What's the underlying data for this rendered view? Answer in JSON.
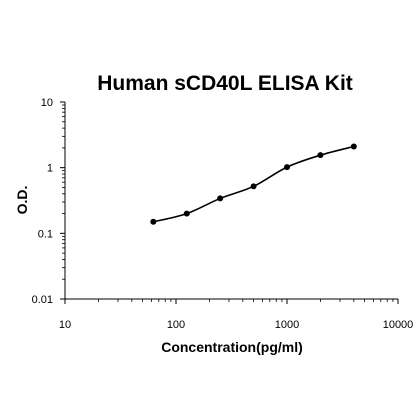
{
  "chart_data": {
    "type": "line",
    "title": "Human sCD40L  ELISA Kit",
    "xlabel": "Concentration(pg/ml)",
    "ylabel": "O.D.",
    "x_scale": "log",
    "y_scale": "log",
    "xlim": [
      10,
      10000
    ],
    "ylim": [
      0.01,
      10
    ],
    "x_ticks": [
      "10",
      "100",
      "1000",
      "10000"
    ],
    "y_ticks": [
      "10",
      "1",
      "0.1",
      "0.01"
    ],
    "grid": false,
    "legend": "none",
    "series": [
      {
        "x": [
          62.5,
          125,
          250,
          500,
          1000,
          2000,
          4000
        ],
        "y": [
          0.15,
          0.2,
          0.34,
          0.52,
          1.02,
          1.55,
          2.1
        ]
      }
    ],
    "colors": {
      "line": "#000000",
      "marker": "#000000"
    }
  }
}
